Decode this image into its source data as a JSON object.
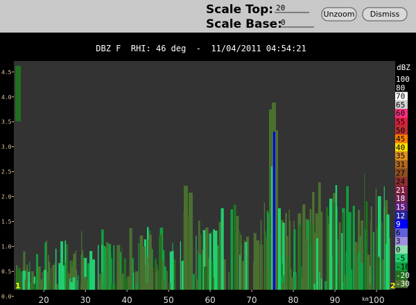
{
  "toolbar": {
    "scale_top_label": "Scale Top:",
    "scale_top_value": "20",
    "scale_base_label": "Scale Base:",
    "scale_base_value": "0",
    "unzoom": "Unzoom",
    "dismiss": "Dismiss"
  },
  "plot": {
    "title": "DBZ F  RHI: 46 deg  -  11/04/2011 04:54:21",
    "xlim": [
      12.8,
      104.5
    ],
    "ylim": [
      0.13,
      4.72
    ],
    "xticks": [
      20,
      30,
      40,
      50,
      60,
      70,
      80,
      90,
      100
    ],
    "x_unit": "km",
    "yticks": [
      {
        "value": 0,
        "label": "0.0"
      },
      {
        "value": 0.5,
        "label": "0.5"
      },
      {
        "value": 1,
        "label": "1.0"
      },
      {
        "value": 1.5,
        "label": "1.5"
      },
      {
        "value": 2,
        "label": "2.0"
      },
      {
        "value": 2.5,
        "label": "2.5"
      },
      {
        "value": 3,
        "label": "3.0"
      },
      {
        "value": 3.5,
        "label": "3.5"
      },
      {
        "value": 4,
        "label": "4.0"
      },
      {
        "value": 4.5,
        "label": "4.5"
      }
    ],
    "corner_labels": [
      "1",
      "2"
    ],
    "colorbar": {
      "unit": "dBZ",
      "levels": [
        {
          "label": 100,
          "color": "#000000"
        },
        {
          "label": 80,
          "color": "#000000"
        },
        {
          "label": 70,
          "color": "#ffffff"
        },
        {
          "label": 65,
          "color": "#d0d0d0"
        },
        {
          "label": 60,
          "color": "#ff3080"
        },
        {
          "label": 55,
          "color": "#e02040"
        },
        {
          "label": 50,
          "color": "#c03030"
        },
        {
          "label": 45,
          "color": "#ff8000"
        },
        {
          "label": 40,
          "color": "#ffe000"
        },
        {
          "label": 35,
          "color": "#e09020"
        },
        {
          "label": 31,
          "color": "#b06820"
        },
        {
          "label": 27,
          "color": "#905020"
        },
        {
          "label": 24,
          "color": "#903030"
        },
        {
          "label": 21,
          "color": "#802040"
        },
        {
          "label": 18,
          "color": "#702050"
        },
        {
          "label": 15,
          "color": "#602080"
        },
        {
          "label": 12,
          "color": "#2020a0"
        },
        {
          "label": 9,
          "color": "#0000ff"
        },
        {
          "label": 6,
          "color": "#6060e0"
        },
        {
          "label": 3,
          "color": "#a090e0"
        },
        {
          "label": 0,
          "color": "#90e0b0"
        },
        {
          "label": -5,
          "color": "#20d070"
        },
        {
          "label": -10,
          "color": "#10a040"
        },
        {
          "label": -20,
          "color": "#207020"
        },
        {
          "label": -30,
          "color": "#4a7030"
        }
      ]
    }
  }
}
